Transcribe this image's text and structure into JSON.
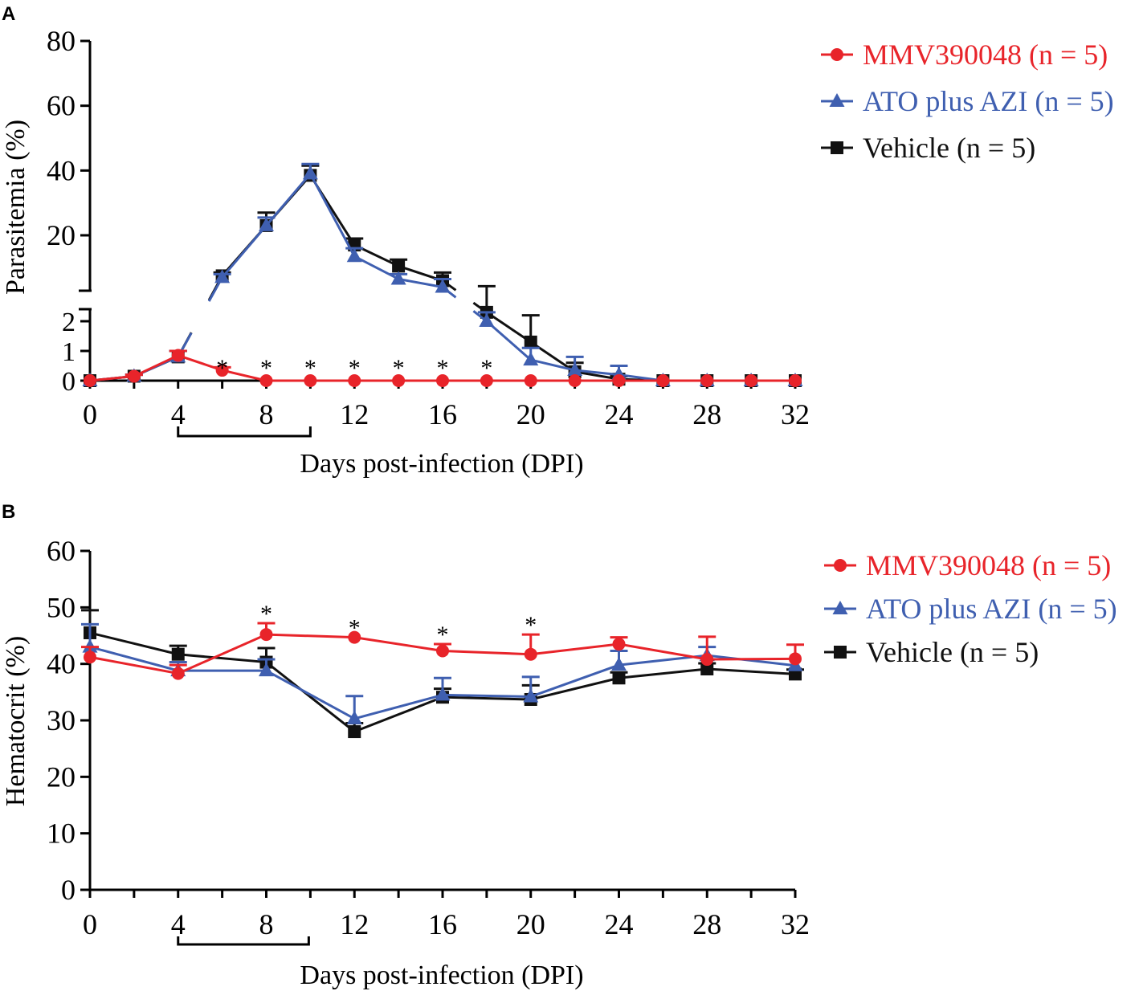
{
  "colors": {
    "mmv": "#e8242a",
    "ato": "#3f5fb0",
    "veh": "#111111"
  },
  "chart_data": [
    {
      "panel_label": "A",
      "type": "line",
      "xlabel": "Days post-infection (DPI)",
      "ylabel": "Parasitemia (%)",
      "xlim": [
        0,
        32
      ],
      "x_ticks": [
        "0",
        "4",
        "8",
        "12",
        "16",
        "20",
        "24",
        "28",
        "32"
      ],
      "y_axis_break": {
        "lower_range": [
          0,
          2.5
        ],
        "upper_range": [
          3,
          80
        ]
      },
      "y_ticks_lower": [
        "0",
        "1",
        "2"
      ],
      "y_ticks_upper": [
        "20",
        "40",
        "60",
        "80"
      ],
      "treatment_bracket_days": [
        4,
        10
      ],
      "significance_marker": "*",
      "significance_days": [
        6,
        8,
        10,
        12,
        14,
        16,
        18
      ],
      "series": [
        {
          "key": "mmv",
          "name": "MMV390048 (n = 5)",
          "marker": "circle",
          "x": [
            0,
            2,
            4,
            6,
            8,
            10,
            12,
            14,
            16,
            18,
            20,
            22,
            24,
            26,
            28,
            30,
            32
          ],
          "y": [
            0,
            0.15,
            0.85,
            0.35,
            0,
            0,
            0,
            0,
            0,
            0,
            0,
            0,
            0,
            0,
            0,
            0,
            0
          ],
          "err": [
            0,
            0.05,
            0.15,
            0.1,
            0,
            0,
            0,
            0,
            0,
            0,
            0,
            0,
            0,
            0,
            0,
            0,
            0
          ]
        },
        {
          "key": "ato",
          "name": "ATO plus AZI (n = 5)",
          "marker": "triangle",
          "x": [
            0,
            2,
            4,
            6,
            8,
            10,
            12,
            14,
            16,
            18,
            20,
            22,
            24,
            26,
            28,
            30,
            32
          ],
          "y": [
            0,
            0.15,
            0.8,
            7,
            23,
            39,
            13.5,
            6.5,
            4,
            2,
            0.7,
            0.35,
            0.2,
            0,
            0,
            0,
            0
          ],
          "err": [
            0,
            0.05,
            0.2,
            1,
            2.5,
            3,
            2.5,
            1.5,
            2.5,
            0.3,
            0.4,
            0.45,
            0.3,
            0,
            0,
            0,
            0
          ]
        },
        {
          "key": "veh",
          "name": "Vehicle (n = 5)",
          "marker": "square",
          "x": [
            0,
            2,
            4,
            6,
            8,
            10,
            12,
            14,
            16,
            18,
            20,
            22,
            24,
            26,
            28,
            30,
            32
          ],
          "y": [
            0,
            0.15,
            0.8,
            7.5,
            23,
            38.5,
            17,
            10.5,
            6,
            2.3,
            1.3,
            0.3,
            0.05,
            0,
            0,
            0,
            0
          ],
          "err": [
            0,
            0.05,
            0.2,
            1,
            4,
            3,
            2,
            2,
            2.5,
            2,
            0.9,
            0.3,
            0.1,
            0,
            0,
            0,
            0
          ]
        }
      ]
    },
    {
      "panel_label": "B",
      "type": "line",
      "xlabel": "Days post-infection (DPI)",
      "ylabel": "Hematocrit (%)",
      "xlim": [
        0,
        32
      ],
      "ylim": [
        0,
        60
      ],
      "x_ticks": [
        "0",
        "4",
        "8",
        "12",
        "16",
        "20",
        "24",
        "28",
        "32"
      ],
      "y_ticks": [
        "0",
        "10",
        "20",
        "30",
        "40",
        "50",
        "60"
      ],
      "treatment_bracket_days": [
        4,
        10
      ],
      "significance_marker": "*",
      "significance_days": [
        8,
        12,
        16,
        20
      ],
      "series": [
        {
          "key": "mmv",
          "name": "MMV390048 (n = 5)",
          "marker": "circle",
          "x": [
            0,
            4,
            8,
            12,
            16,
            20,
            24,
            28,
            32
          ],
          "y": [
            41.2,
            38.3,
            45.2,
            44.7,
            42.3,
            41.7,
            43.5,
            40.8,
            40.9
          ],
          "err": [
            1.8,
            1.5,
            2,
            0,
            1.2,
            3.5,
            1.2,
            4,
            2.5
          ]
        },
        {
          "key": "ato",
          "name": "ATO plus AZI (n = 5)",
          "marker": "triangle",
          "x": [
            0,
            4,
            8,
            12,
            16,
            20,
            24,
            28,
            32
          ],
          "y": [
            43,
            38.8,
            38.8,
            30.3,
            34.5,
            34.2,
            39.8,
            41.5,
            39.7
          ],
          "err": [
            4,
            1.5,
            2,
            4,
            3,
            3.5,
            2.5,
            1.5,
            0
          ]
        },
        {
          "key": "veh",
          "name": "Vehicle (n = 5)",
          "marker": "square",
          "x": [
            0,
            4,
            8,
            12,
            16,
            20,
            24,
            28,
            32
          ],
          "y": [
            45.5,
            41.7,
            40.3,
            28,
            34.1,
            33.7,
            37.5,
            39.1,
            38.2
          ],
          "err": [
            4,
            1.5,
            2.5,
            1.5,
            1.5,
            2.5,
            1,
            1,
            0.8
          ]
        }
      ]
    }
  ]
}
